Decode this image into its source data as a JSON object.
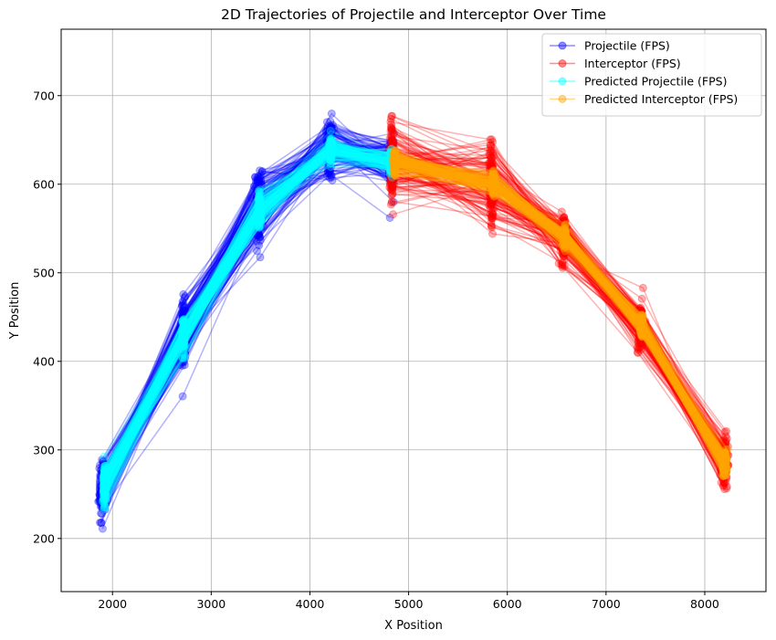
{
  "chart_data": {
    "type": "line",
    "title": "2D Trajectories of Projectile and Interceptor Over Time",
    "xlabel": "X Position",
    "ylabel": "Y Position",
    "xlim": [
      1480,
      8620
    ],
    "ylim": [
      140,
      775
    ],
    "xticks": [
      2000,
      3000,
      4000,
      5000,
      6000,
      7000,
      8000
    ],
    "yticks": [
      200,
      300,
      400,
      500,
      600,
      700
    ],
    "grid": true,
    "legend_position": "top-right",
    "series": [
      {
        "name": "Projectile (FPS)",
        "color": "#0000ff",
        "alpha": 0.3,
        "marker": "circle",
        "x": [
          1900,
          2720,
          3480,
          4200,
          4830
        ],
        "y": [
          255,
          430,
          575,
          640,
          625
        ],
        "y_spread": [
          32,
          36,
          40,
          34,
          30
        ],
        "x_spread": [
          35,
          35,
          35,
          30,
          25
        ]
      },
      {
        "name": "Interceptor (FPS)",
        "color": "#ff0000",
        "alpha": 0.3,
        "marker": "circle",
        "x": [
          4830,
          5840,
          6570,
          7350,
          8200
        ],
        "y": [
          625,
          600,
          540,
          440,
          285
        ],
        "y_spread": [
          45,
          42,
          28,
          25,
          28
        ],
        "x_spread": [
          25,
          25,
          30,
          30,
          35
        ]
      },
      {
        "name": "Predicted Projectile (FPS)",
        "color": "#00ffff",
        "alpha": 0.3,
        "marker": "circle",
        "x": [
          1920,
          2720,
          3490,
          4210,
          4820
        ],
        "y": [
          262,
          430,
          570,
          640,
          625
        ],
        "y_spread": [
          22,
          20,
          18,
          14,
          12
        ],
        "x_spread": [
          15,
          15,
          15,
          15,
          10
        ]
      },
      {
        "name": "Predicted Interceptor (FPS)",
        "color": "#ffa500",
        "alpha": 0.3,
        "marker": "circle",
        "x": [
          4860,
          5860,
          6580,
          7360,
          8200
        ],
        "y": [
          625,
          600,
          540,
          440,
          285
        ],
        "y_spread": [
          12,
          12,
          10,
          12,
          14
        ],
        "x_spread": [
          15,
          15,
          15,
          15,
          20
        ]
      }
    ],
    "trajectory_count": 140
  }
}
